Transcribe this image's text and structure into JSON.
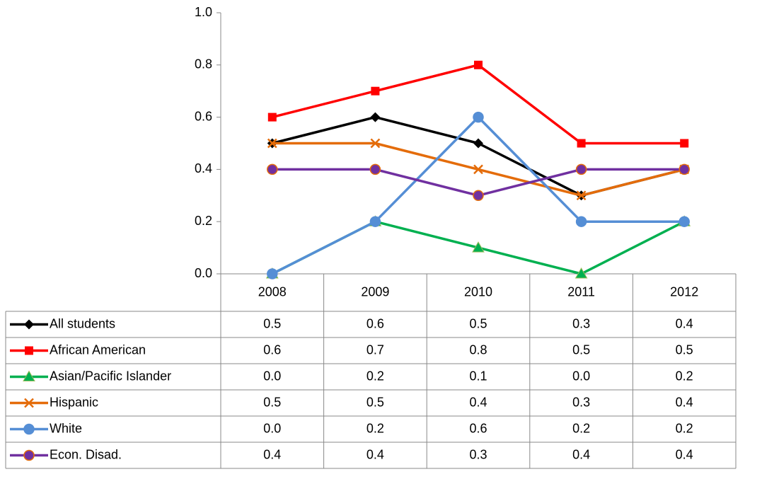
{
  "chart_data": {
    "type": "line",
    "categories": [
      "2008",
      "2009",
      "2010",
      "2011",
      "2012"
    ],
    "ylim": [
      0,
      1
    ],
    "yticks": [
      {
        "value": 0,
        "label": "0.0"
      },
      0.2,
      0.4,
      0.6,
      0.8,
      {
        "value": 1,
        "label": "1.0"
      }
    ],
    "grid": false,
    "data_table": true,
    "series": [
      {
        "name": "All students",
        "color": "#000000",
        "marker": "diamond",
        "values": [
          0.5,
          0.6,
          0.5,
          0.3,
          0.4
        ],
        "value_labels": [
          "0.5",
          "0.6",
          "0.5",
          "0.3",
          "0.4"
        ]
      },
      {
        "name": "African American",
        "color": "#ff0000",
        "marker": "square",
        "values": [
          0.6,
          0.7,
          0.8,
          0.5,
          0.5
        ],
        "value_labels": [
          "0.6",
          "0.7",
          "0.8",
          "0.5",
          "0.5"
        ]
      },
      {
        "name": "Asian/Pacific Islander",
        "color": "#00b050",
        "marker": "triangle",
        "values": [
          0,
          0.2,
          0.1,
          0,
          0.2
        ],
        "value_labels": [
          "0.0",
          "0.2",
          "0.1",
          "0.0",
          "0.2"
        ]
      },
      {
        "name": "Hispanic",
        "color": "#e46c0a",
        "marker": "x",
        "values": [
          0.5,
          0.5,
          0.4,
          0.3,
          0.4
        ],
        "value_labels": [
          "0.5",
          "0.5",
          "0.4",
          "0.3",
          "0.4"
        ]
      },
      {
        "name": "White",
        "color": "#558ed5",
        "marker": "circle",
        "values": [
          0,
          0.2,
          0.6,
          0.2,
          0.2
        ],
        "value_labels": [
          "0.0",
          "0.2",
          "0.6",
          "0.2",
          "0.2"
        ]
      },
      {
        "name": "Econ. Disad.",
        "color": "#7030a0",
        "marker": "circle",
        "marker_edge": "#e46c0a",
        "values": [
          0.4,
          0.4,
          0.3,
          0.4,
          0.4
        ],
        "value_labels": [
          "0.4",
          "0.4",
          "0.3",
          "0.4",
          "0.4"
        ]
      }
    ]
  }
}
